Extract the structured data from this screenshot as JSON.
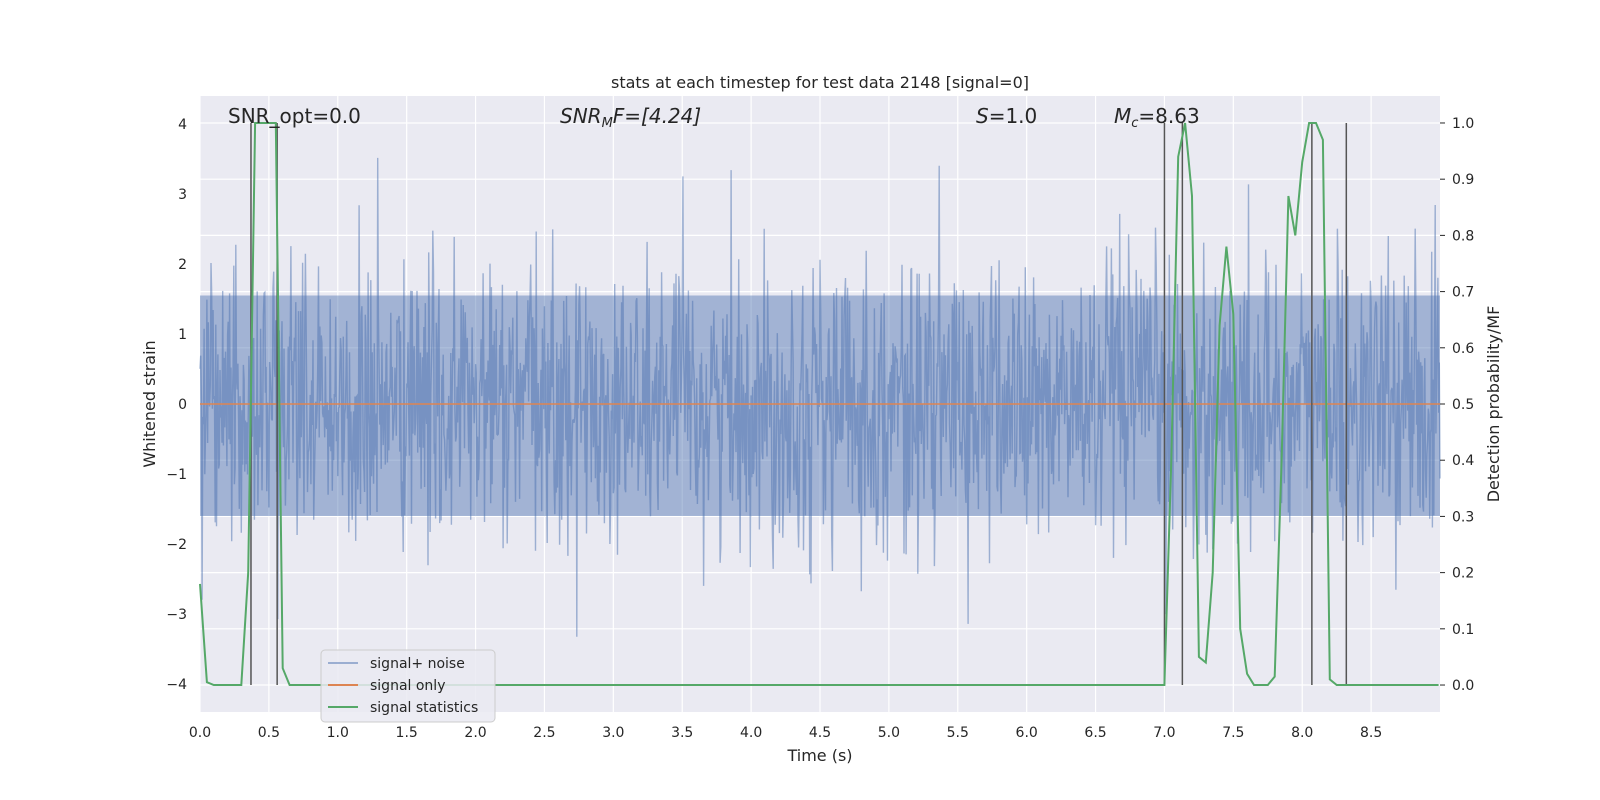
{
  "chart_data": {
    "type": "line",
    "title": "stats at each timestep for test data 2148 [signal=0]",
    "xlabel": "Time (s)",
    "ylabel": "Whitened strain",
    "y2label": "Detection probability/MF",
    "xlim": [
      0,
      9
    ],
    "ylim": [
      -4.4,
      4.4
    ],
    "y2lim": [
      -0.048,
      1.048
    ],
    "xticks": [
      "0.0",
      "0.5",
      "1.0",
      "1.5",
      "2.0",
      "2.5",
      "3.0",
      "3.5",
      "4.0",
      "4.5",
      "5.0",
      "5.5",
      "6.0",
      "6.5",
      "7.0",
      "7.5",
      "8.0",
      "8.5"
    ],
    "yticks": [
      "4",
      "3",
      "2",
      "1",
      "0",
      "−1",
      "−2",
      "−3",
      "−4"
    ],
    "y2ticks": [
      "1.0",
      "0.9",
      "0.8",
      "0.7",
      "0.6",
      "0.5",
      "0.4",
      "0.3",
      "0.2",
      "0.1",
      "0.0"
    ],
    "grid": true,
    "legend_position": "lower-left",
    "colors": {
      "background": "#eaeaf2",
      "grid": "#ffffff",
      "noise": "#4c72b0",
      "signal": "#dd8452",
      "stats": "#55a868",
      "vlines": "#555555"
    },
    "annotations": [
      {
        "name": "snr-opt",
        "text": "SNR_opt=0.0"
      },
      {
        "name": "snr-mf",
        "prefix": "SNR",
        "sub": "M",
        "suffix": "F=[4.24]"
      },
      {
        "name": "s-value",
        "prefix": "S",
        "suffix": "=1.0"
      },
      {
        "name": "chirp-mass",
        "prefix": "M",
        "sub": "c",
        "suffix": "=8.63"
      }
    ],
    "series": [
      {
        "name": "signal+ noise",
        "kind": "noise",
        "mean": 0,
        "std_estimate": 1.0,
        "x_range": [
          0,
          9
        ]
      },
      {
        "name": "signal only",
        "kind": "flat",
        "value": 0
      },
      {
        "name": "signal statistics",
        "kind": "line",
        "axis": "y2",
        "x": [
          0,
          0.05,
          0.1,
          0.15,
          0.2,
          0.25,
          0.3,
          0.35,
          0.4,
          0.45,
          0.5,
          0.55,
          0.6,
          0.65,
          0.7,
          1.0,
          2.0,
          3.0,
          4.0,
          5.0,
          6.0,
          6.8,
          7.0,
          7.05,
          7.1,
          7.15,
          7.2,
          7.25,
          7.3,
          7.35,
          7.4,
          7.45,
          7.5,
          7.55,
          7.6,
          7.65,
          7.7,
          7.75,
          7.8,
          7.85,
          7.9,
          7.95,
          8.0,
          8.05,
          8.1,
          8.15,
          8.2,
          8.25,
          8.3,
          8.35,
          8.4,
          8.45,
          8.5,
          8.6,
          8.7,
          8.8,
          8.9,
          8.99
        ],
        "y": [
          0.18,
          0.005,
          0.0,
          0.0,
          0.0,
          0.0,
          0.0,
          0.2,
          1.0,
          1.0,
          1.0,
          1.0,
          0.03,
          0.0,
          0.0,
          0.0,
          0.0,
          0.0,
          0.0,
          0.0,
          0.0,
          0.0,
          0.0,
          0.4,
          0.94,
          1.0,
          0.87,
          0.05,
          0.04,
          0.2,
          0.64,
          0.78,
          0.66,
          0.1,
          0.02,
          0.0,
          0.0,
          0.0,
          0.015,
          0.4,
          0.87,
          0.8,
          0.93,
          1.0,
          1.0,
          0.97,
          0.01,
          0.0,
          0.0,
          0.0,
          0.0,
          0.0,
          0.0,
          0.0,
          0.0,
          0.0,
          0.0,
          0.0
        ]
      }
    ],
    "vlines_x": [
      0.37,
      0.56,
      7.0,
      7.13,
      8.07,
      8.32
    ]
  },
  "legend": {
    "items": [
      {
        "label": "signal+ noise"
      },
      {
        "label": "signal only"
      },
      {
        "label": "signal statistics"
      }
    ]
  }
}
